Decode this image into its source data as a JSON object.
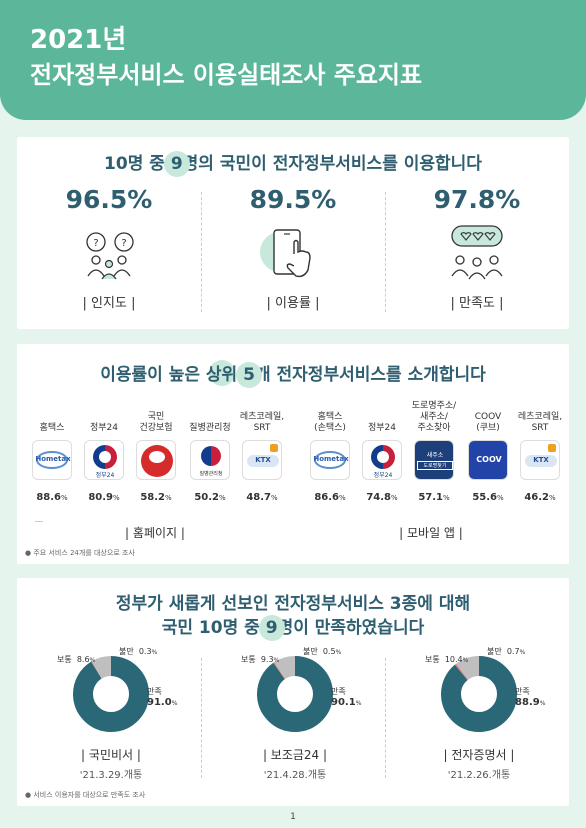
{
  "header": {
    "year_title": "2021년",
    "subtitle": "전자정부서비스 이용실태조사 주요지표"
  },
  "section1": {
    "title_pre": "10명 중 ",
    "title_hl": "9",
    "title_post": "명의 국민이 전자정부서비스를 이용합니다",
    "stats": [
      {
        "value": "96.5%",
        "label": "|   인지도   |",
        "icon": "people-question-icon"
      },
      {
        "value": "89.5%",
        "label": "|   이용률   |",
        "icon": "hand-phone-icon"
      },
      {
        "value": "97.8%",
        "label": "|   만족도   |",
        "icon": "people-heart-icon"
      }
    ]
  },
  "section2": {
    "title_pre": "이용률이 높은 ",
    "title_hl1": "상위",
    "title_mid": " ",
    "title_hl2": "5",
    "title_post": "개 전자정부서비스를 소개합니다",
    "homepage_label": "|   홈페이지   |",
    "mobile_label": "|   모바일 앱   |",
    "homepage": [
      {
        "name": "홈택스",
        "value": "88.6",
        "unit": "%",
        "icon": "hometax-icon"
      },
      {
        "name": "정부24",
        "value": "80.9",
        "unit": "%",
        "icon": "gov24-icon"
      },
      {
        "name": "국민\n건강보험",
        "value": "58.2",
        "unit": "%",
        "icon": "nhis-icon"
      },
      {
        "name": "질병관리청",
        "value": "50.2",
        "unit": "%",
        "icon": "kdca-icon"
      },
      {
        "name": "레츠코레일,\nSRT",
        "value": "48.7",
        "unit": "%",
        "icon": "ktx-icon"
      }
    ],
    "mobile": [
      {
        "name": "홈택스\n(손택스)",
        "value": "86.6",
        "unit": "%",
        "icon": "hometax-icon"
      },
      {
        "name": "정부24",
        "value": "74.8",
        "unit": "%",
        "icon": "gov24-icon"
      },
      {
        "name": "도로명주소/\n새주소/\n주소찾아",
        "value": "57.1",
        "unit": "%",
        "icon": "address-icon"
      },
      {
        "name": "COOV\n(쿠브)",
        "value": "55.6",
        "unit": "%",
        "icon": "coov-icon"
      },
      {
        "name": "레츠코레일,\nSRT",
        "value": "46.2",
        "unit": "%",
        "icon": "ktx-icon"
      }
    ],
    "icon_text": {
      "hometax": "Hometax",
      "gov24": "정부24",
      "kdca": "질병관리청",
      "address_top": "새주소",
      "address_bottom": "도로명찾기",
      "coov": "COOV",
      "ktx": "KTX"
    },
    "note": "● 주요 서비스 24개를 대상으로 조사"
  },
  "section3": {
    "title_line1": "정부가 새롭게 선보인 전자정부서비스 3종에 대해",
    "title_line2_pre": "국민 10명 중 ",
    "title_line2_hl": "9",
    "title_line2_post": "명이 만족하였습니다",
    "labels": {
      "satisfied": "만족",
      "normal": "보통",
      "dissatisfied": "불만"
    },
    "services": [
      {
        "name": "|   국민비서   |",
        "date": "'21.3.29.개통",
        "satisfied": "91.0",
        "normal": "8.6",
        "dissatisfied": "0.3",
        "unit": "%"
      },
      {
        "name": "|   보조금24   |",
        "date": "'21.4.28.개통",
        "satisfied": "90.1",
        "normal": "9.3",
        "dissatisfied": "0.5",
        "unit": "%"
      },
      {
        "name": "|   전자증명서   |",
        "date": "'21.2.26.개통",
        "satisfied": "88.9",
        "normal": "10.4",
        "dissatisfied": "0.7",
        "unit": "%"
      }
    ],
    "note": "● 서비스 이용자를 대상으로 만족도 조사"
  },
  "colors": {
    "accent": "#5cb699",
    "dark": "#2e5e70",
    "donut_main": "#2a6878",
    "donut_normal": "#bfbfbf",
    "donut_bad": "#e08080"
  },
  "page_number": "1"
}
